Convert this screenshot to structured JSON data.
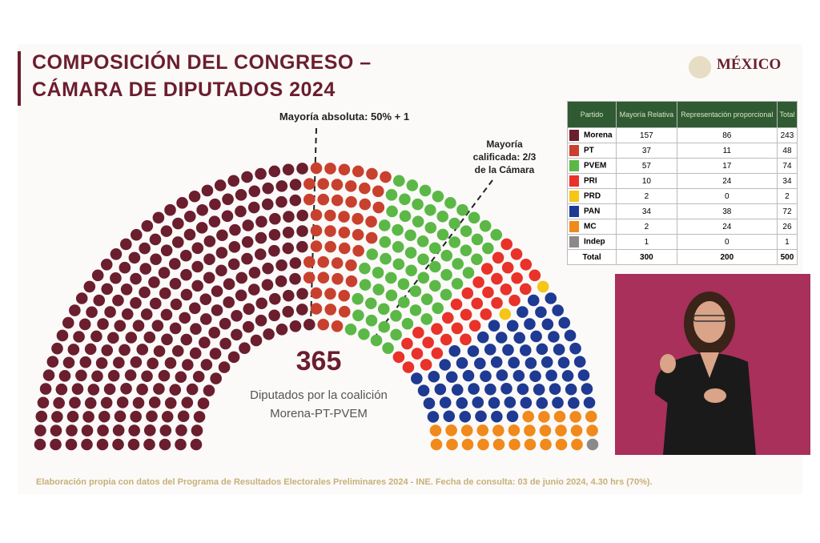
{
  "header": {
    "title_line1": "COMPOSICIÓN DEL CONGRESO –",
    "title_line2": "CÁMARA DE DIPUTADOS 2024",
    "logo": "MÉXICO"
  },
  "chart_data": {
    "type": "parliament",
    "annotation_majority": "Mayoría absoluta: 50% + 1",
    "annotation_qualified": [
      "Mayoría",
      "calificada: 2/3",
      "de la Cámara"
    ],
    "coalition_total": 365,
    "caption": [
      "Diputados por la coalición",
      "Morena-PT-PVEM"
    ],
    "series": [
      {
        "name": "Morena",
        "color": "#6b1e2e",
        "values": [
          243
        ]
      },
      {
        "name": "PT",
        "color": "#c8412e",
        "values": [
          48
        ]
      },
      {
        "name": "PVEM",
        "color": "#5bb847",
        "values": [
          74
        ]
      },
      {
        "name": "PRI",
        "color": "#e8322a",
        "values": [
          34
        ]
      },
      {
        "name": "PRD",
        "color": "#f5c518",
        "values": [
          2
        ]
      },
      {
        "name": "PAN",
        "color": "#1f3a93",
        "values": [
          72
        ]
      },
      {
        "name": "MC",
        "color": "#f08a1c",
        "values": [
          26
        ]
      },
      {
        "name": "Indep",
        "color": "#8a8a8a",
        "values": [
          1
        ]
      }
    ]
  },
  "table": {
    "columns": [
      "Partido",
      "Mayoría Relativa",
      "Representación proporcional",
      "Total"
    ],
    "rows": [
      [
        157,
        86
      ],
      [
        37,
        11
      ],
      [
        57,
        17
      ],
      [
        10,
        24
      ],
      [
        2,
        0
      ],
      [
        34,
        38
      ],
      [
        2,
        24
      ],
      [
        1,
        0
      ]
    ],
    "total_label": "Total",
    "totals": [
      300,
      200,
      500
    ]
  },
  "footer": "Elaboración propia con datos del Programa de Resultados Electorales Preliminares 2024 - INE. Fecha de consulta: 03 de junio 2024, 4.30 hrs (70%)."
}
